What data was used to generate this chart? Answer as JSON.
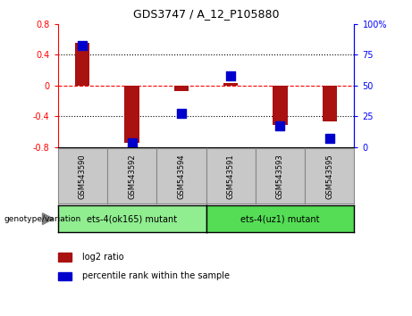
{
  "title": "GDS3747 / A_12_P105880",
  "samples": [
    "GSM543590",
    "GSM543592",
    "GSM543594",
    "GSM543591",
    "GSM543593",
    "GSM543595"
  ],
  "log2_ratio": [
    0.55,
    -0.75,
    -0.08,
    0.03,
    -0.52,
    -0.47
  ],
  "percentile_rank": [
    82,
    3,
    27,
    58,
    17,
    7
  ],
  "groups": [
    {
      "label": "ets-4(ok165) mutant",
      "indices": [
        0,
        1,
        2
      ],
      "color": "#90EE90"
    },
    {
      "label": "ets-4(uz1) mutant",
      "indices": [
        3,
        4,
        5
      ],
      "color": "#55DD55"
    }
  ],
  "bar_color": "#AA1111",
  "dot_color": "#0000CC",
  "ylim_left": [
    -0.8,
    0.8
  ],
  "ylim_right": [
    0,
    100
  ],
  "yticks_left": [
    -0.8,
    -0.4,
    0.0,
    0.4,
    0.8
  ],
  "ytick_labels_left": [
    "-0.8",
    "-0.4",
    "0",
    "0.4",
    "0.8"
  ],
  "yticks_right": [
    0,
    25,
    50,
    75,
    100
  ],
  "ytick_labels_right": [
    "0",
    "25",
    "50",
    "75",
    "100%"
  ],
  "bar_width": 0.3,
  "dot_size": 45,
  "plot_bg_color": "#FFFFFF",
  "sample_box_color": "#C8C8C8",
  "genotype_label": "genotype/variation",
  "legend_bar_label": "log2 ratio",
  "legend_dot_label": "percentile rank within the sample"
}
